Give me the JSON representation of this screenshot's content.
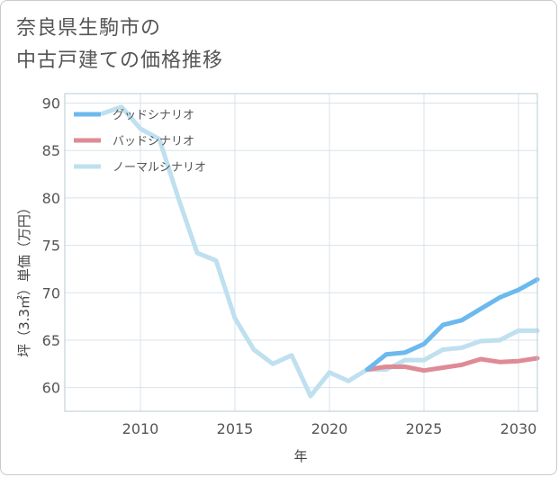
{
  "title_lines": [
    "奈良県生駒市の",
    "中古戸建ての価格推移"
  ],
  "colors": {
    "good": "#6cb9ee",
    "bad": "#de8b96",
    "normal": "#bfe0ee",
    "grid": "#d7e3ea",
    "frame": "#b8c8d2"
  },
  "chart_data": {
    "type": "line",
    "title": "奈良県生駒市の中古戸建ての価格推移",
    "xlabel": "年",
    "ylabel": "坪（3.3㎡）単価（万円）",
    "xlim": [
      2006,
      2031
    ],
    "ylim": [
      57.5,
      91
    ],
    "xticks": [
      2010,
      2015,
      2020,
      2025,
      2030
    ],
    "yticks": [
      60,
      65,
      70,
      75,
      80,
      85,
      90
    ],
    "grid": true,
    "legend_position": "top-left",
    "series": [
      {
        "name": "グッドシナリオ",
        "color_key": "good",
        "x": [
          2022,
          2023,
          2024,
          2025,
          2026,
          2027,
          2028,
          2029,
          2030,
          2031
        ],
        "y": [
          61.9,
          63.5,
          63.7,
          64.6,
          66.6,
          67.1,
          68.3,
          69.5,
          70.3,
          71.4
        ]
      },
      {
        "name": "バッドシナリオ",
        "color_key": "bad",
        "x": [
          2022,
          2023,
          2024,
          2025,
          2026,
          2027,
          2028,
          2029,
          2030,
          2031
        ],
        "y": [
          61.9,
          62.2,
          62.2,
          61.8,
          62.1,
          62.4,
          63.0,
          62.7,
          62.8,
          63.1
        ]
      },
      {
        "name": "ノーマルシナリオ",
        "color_key": "normal",
        "x": [
          2008,
          2009,
          2010,
          2011,
          2012,
          2013,
          2014,
          2015,
          2016,
          2017,
          2018,
          2019,
          2020,
          2021,
          2022,
          2023,
          2024,
          2025,
          2026,
          2027,
          2028,
          2029,
          2030,
          2031
        ],
        "y": [
          88.9,
          89.6,
          87.3,
          86.2,
          80.0,
          74.2,
          73.4,
          67.3,
          64.0,
          62.5,
          63.4,
          59.1,
          61.6,
          60.7,
          61.9,
          61.9,
          62.9,
          62.9,
          64.0,
          64.2,
          64.9,
          65.0,
          66.0,
          66.0
        ]
      }
    ]
  }
}
